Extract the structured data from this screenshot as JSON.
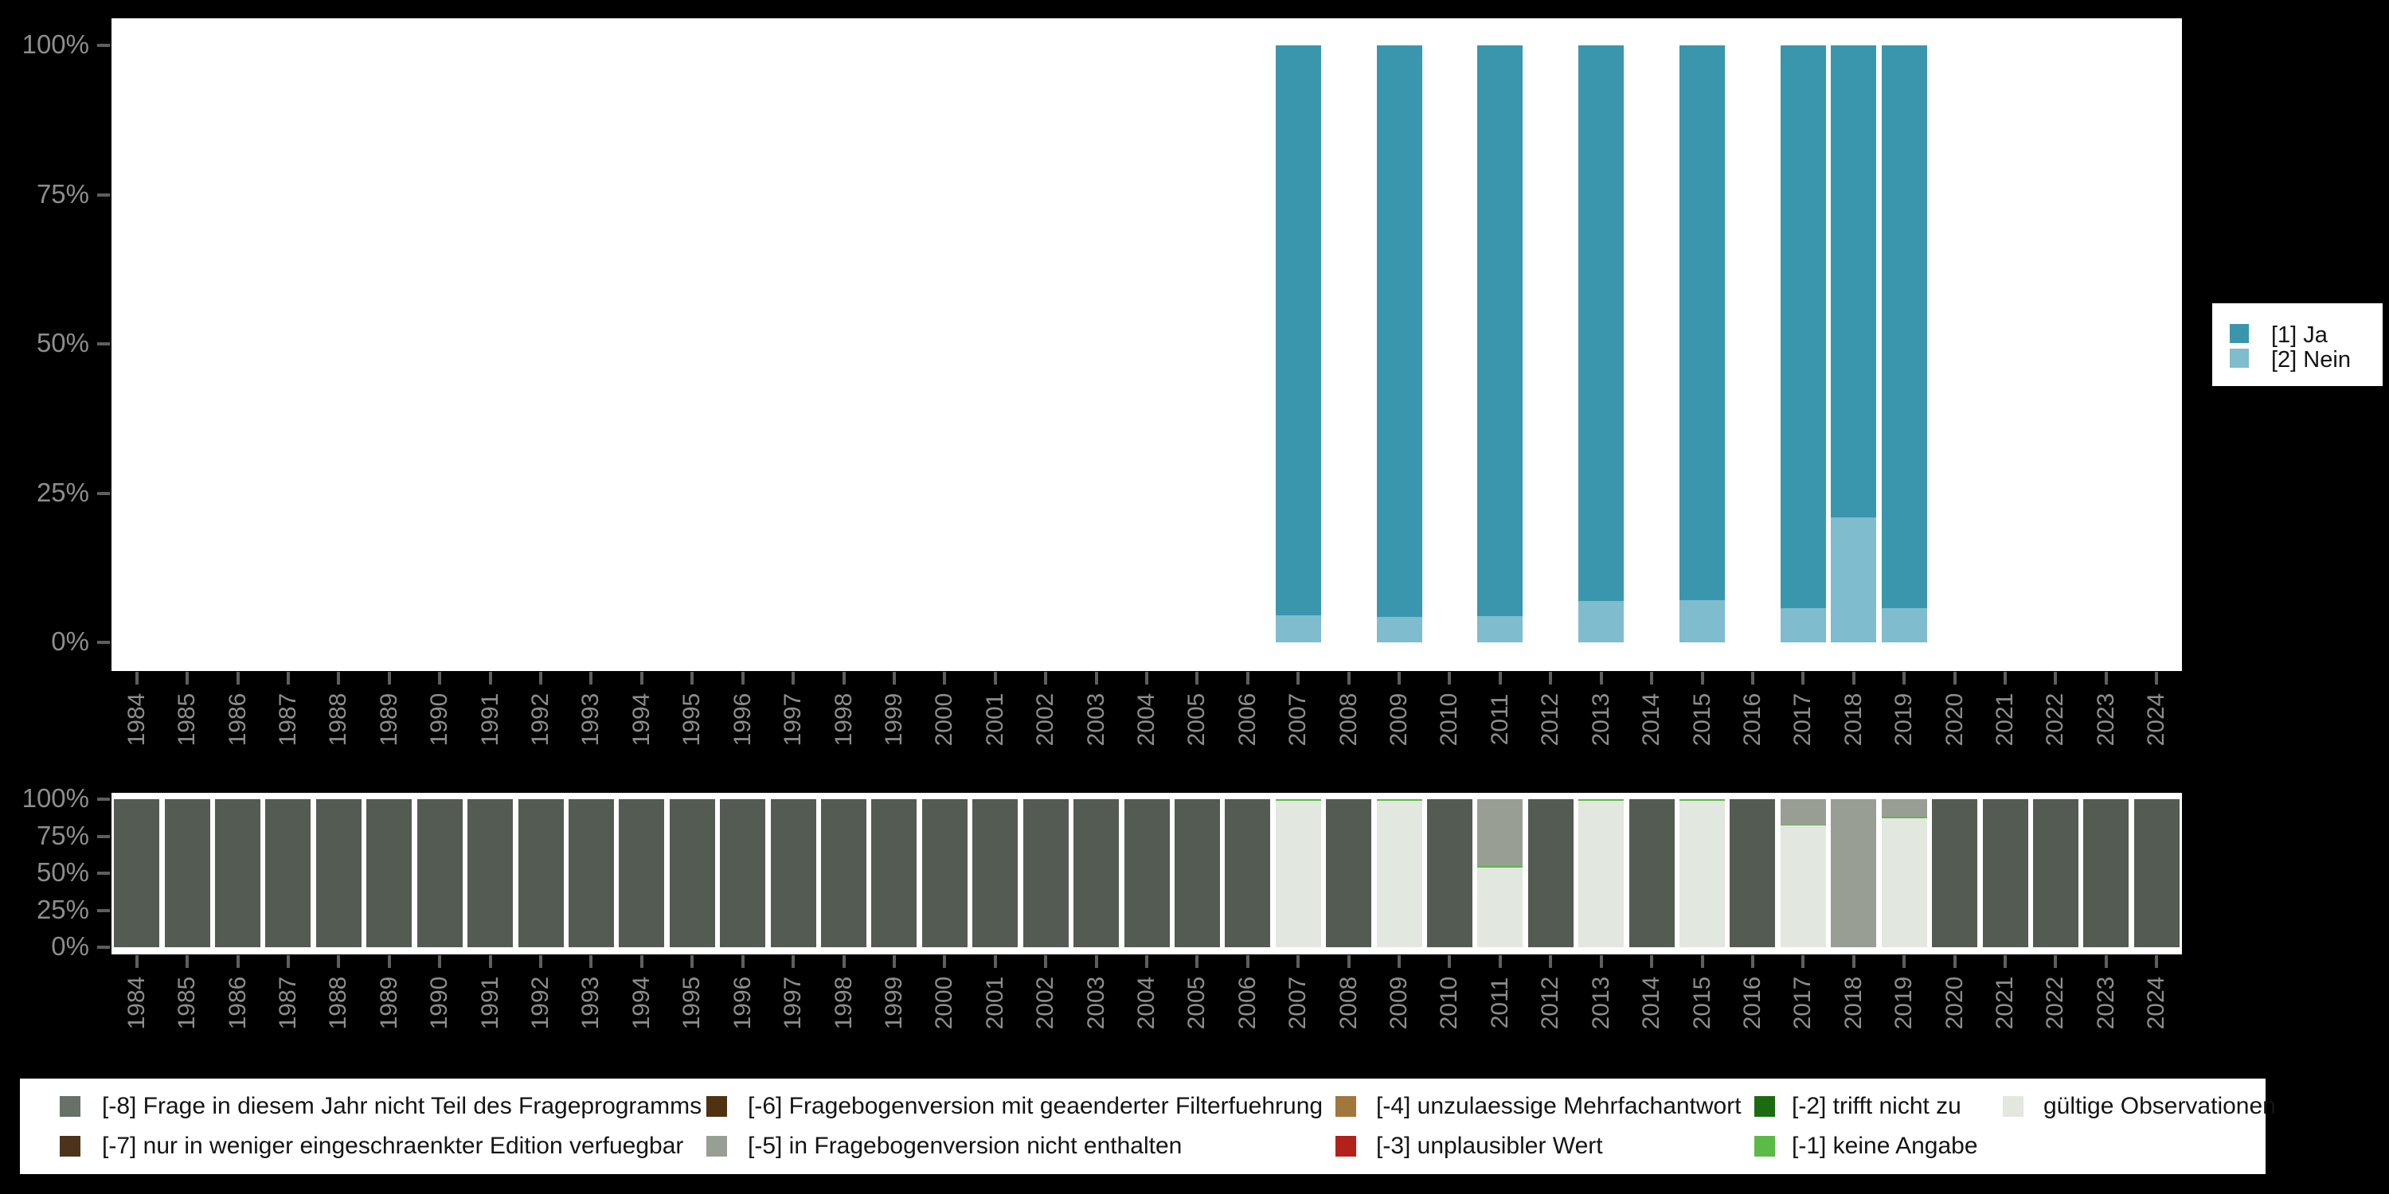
{
  "colors": {
    "background": "#000000",
    "panel": "#ffffff",
    "axis_text": "#8d8d8d",
    "axis_tick": "#5e5e5e",
    "legend_text": "#141414"
  },
  "chart_data": [
    {
      "type": "bar",
      "stacked": true,
      "title": "",
      "xlabel": "",
      "ylabel": "",
      "unit": "percent",
      "ylim": [
        0,
        100
      ],
      "grid": false,
      "legend_position": "right",
      "y_ticks": [
        "0%",
        "25%",
        "50%",
        "75%",
        "100%"
      ],
      "categories": [
        "1984",
        "1985",
        "1986",
        "1987",
        "1988",
        "1989",
        "1990",
        "1991",
        "1992",
        "1993",
        "1994",
        "1995",
        "1996",
        "1997",
        "1998",
        "1999",
        "2000",
        "2001",
        "2002",
        "2003",
        "2004",
        "2005",
        "2006",
        "2007",
        "2008",
        "2009",
        "2010",
        "2011",
        "2012",
        "2013",
        "2014",
        "2015",
        "2016",
        "2017",
        "2018",
        "2019",
        "2020",
        "2021",
        "2022",
        "2023",
        "2024"
      ],
      "series": [
        {
          "name": "[1] Ja",
          "color": "#3996ad",
          "values": [
            null,
            null,
            null,
            null,
            null,
            null,
            null,
            null,
            null,
            null,
            null,
            null,
            null,
            null,
            null,
            null,
            null,
            null,
            null,
            null,
            null,
            null,
            null,
            95.5,
            null,
            95.7,
            null,
            95.6,
            null,
            93.1,
            null,
            92.9,
            null,
            94.3,
            79.0,
            94.2,
            null,
            null,
            null,
            null,
            null
          ]
        },
        {
          "name": "[2] Nein",
          "color": "#7fbccd",
          "values": [
            null,
            null,
            null,
            null,
            null,
            null,
            null,
            null,
            null,
            null,
            null,
            null,
            null,
            null,
            null,
            null,
            null,
            null,
            null,
            null,
            null,
            null,
            null,
            4.5,
            null,
            4.3,
            null,
            4.4,
            null,
            6.9,
            null,
            7.1,
            null,
            5.7,
            21.0,
            5.8,
            null,
            null,
            null,
            null,
            null
          ]
        }
      ]
    },
    {
      "type": "bar",
      "stacked": true,
      "title": "",
      "xlabel": "",
      "ylabel": "",
      "unit": "percent",
      "ylim": [
        0,
        100
      ],
      "grid": false,
      "legend_position": "bottom",
      "y_ticks": [
        "0%",
        "25%",
        "50%",
        "75%",
        "100%"
      ],
      "categories": [
        "1984",
        "1985",
        "1986",
        "1987",
        "1988",
        "1989",
        "1990",
        "1991",
        "1992",
        "1993",
        "1994",
        "1995",
        "1996",
        "1997",
        "1998",
        "1999",
        "2000",
        "2001",
        "2002",
        "2003",
        "2004",
        "2005",
        "2006",
        "2007",
        "2008",
        "2009",
        "2010",
        "2011",
        "2012",
        "2013",
        "2014",
        "2015",
        "2016",
        "2017",
        "2018",
        "2019",
        "2020",
        "2021",
        "2022",
        "2023",
        "2024"
      ],
      "series": [
        {
          "name": "[-8] Frage in diesem Jahr nicht Teil des Frageprogramms",
          "color": "#545b52",
          "values": [
            100,
            100,
            100,
            100,
            100,
            100,
            100,
            100,
            100,
            100,
            100,
            100,
            100,
            100,
            100,
            100,
            100,
            100,
            100,
            100,
            100,
            100,
            100,
            0,
            100,
            0,
            100,
            0,
            100,
            0,
            100,
            0,
            100,
            0,
            0,
            0,
            100,
            100,
            100,
            100,
            100
          ]
        },
        {
          "name": "[-5] in Fragebogenversion nicht enthalten",
          "color": "#999e95",
          "values": [
            0,
            0,
            0,
            0,
            0,
            0,
            0,
            0,
            0,
            0,
            0,
            0,
            0,
            0,
            0,
            0,
            0,
            0,
            0,
            0,
            0,
            0,
            0,
            0,
            0,
            0,
            0,
            45,
            0,
            0,
            0,
            0,
            0,
            17,
            100,
            12,
            0,
            0,
            0,
            0,
            0
          ]
        },
        {
          "name": "[-1] keine Angabe",
          "color": "#5cba47",
          "values": [
            0,
            0,
            0,
            0,
            0,
            0,
            0,
            0,
            0,
            0,
            0,
            0,
            0,
            0,
            0,
            0,
            0,
            0,
            0,
            0,
            0,
            0,
            0,
            1,
            0,
            1,
            0,
            1,
            0,
            1,
            0,
            1,
            0,
            1,
            0,
            1,
            0,
            0,
            0,
            0,
            0
          ]
        },
        {
          "name": "gültige Observationen",
          "color": "#e2e7df",
          "values": [
            0,
            0,
            0,
            0,
            0,
            0,
            0,
            0,
            0,
            0,
            0,
            0,
            0,
            0,
            0,
            0,
            0,
            0,
            0,
            0,
            0,
            0,
            0,
            99,
            0,
            99,
            0,
            54,
            0,
            99,
            0,
            99,
            0,
            82,
            0,
            87,
            0,
            0,
            0,
            0,
            0
          ]
        }
      ]
    }
  ],
  "legend_right": {
    "items": [
      {
        "label": "[1] Ja",
        "color": "#3996ad"
      },
      {
        "label": "[2] Nein",
        "color": "#7fbccd"
      }
    ]
  },
  "legend_bottom": {
    "columns": [
      [
        {
          "label": "[-8] Frage in diesem Jahr nicht Teil des Frageprogramms",
          "color": "#68706a"
        },
        {
          "label": "[-7] nur in weniger eingeschraenkter Edition verfuegbar",
          "color": "#4d331b"
        }
      ],
      [
        {
          "label": "[-6] Fragebogenversion mit geaenderter Filterfuehrung",
          "color": "#4f3212"
        },
        {
          "label": "[-5] in Fragebogenversion nicht enthalten",
          "color": "#999e95"
        }
      ],
      [
        {
          "label": "[-4] unzulaessige Mehrfachantwort",
          "color": "#a0783c"
        },
        {
          "label": "[-3] unplausibler Wert",
          "color": "#b2211a"
        }
      ],
      [
        {
          "label": "[-2] trifft nicht zu",
          "color": "#1d6b10"
        },
        {
          "label": "[-1] keine Angabe",
          "color": "#5cba47"
        }
      ],
      [
        {
          "label": "gültige Observationen",
          "color": "#e2e7df"
        }
      ]
    ]
  }
}
